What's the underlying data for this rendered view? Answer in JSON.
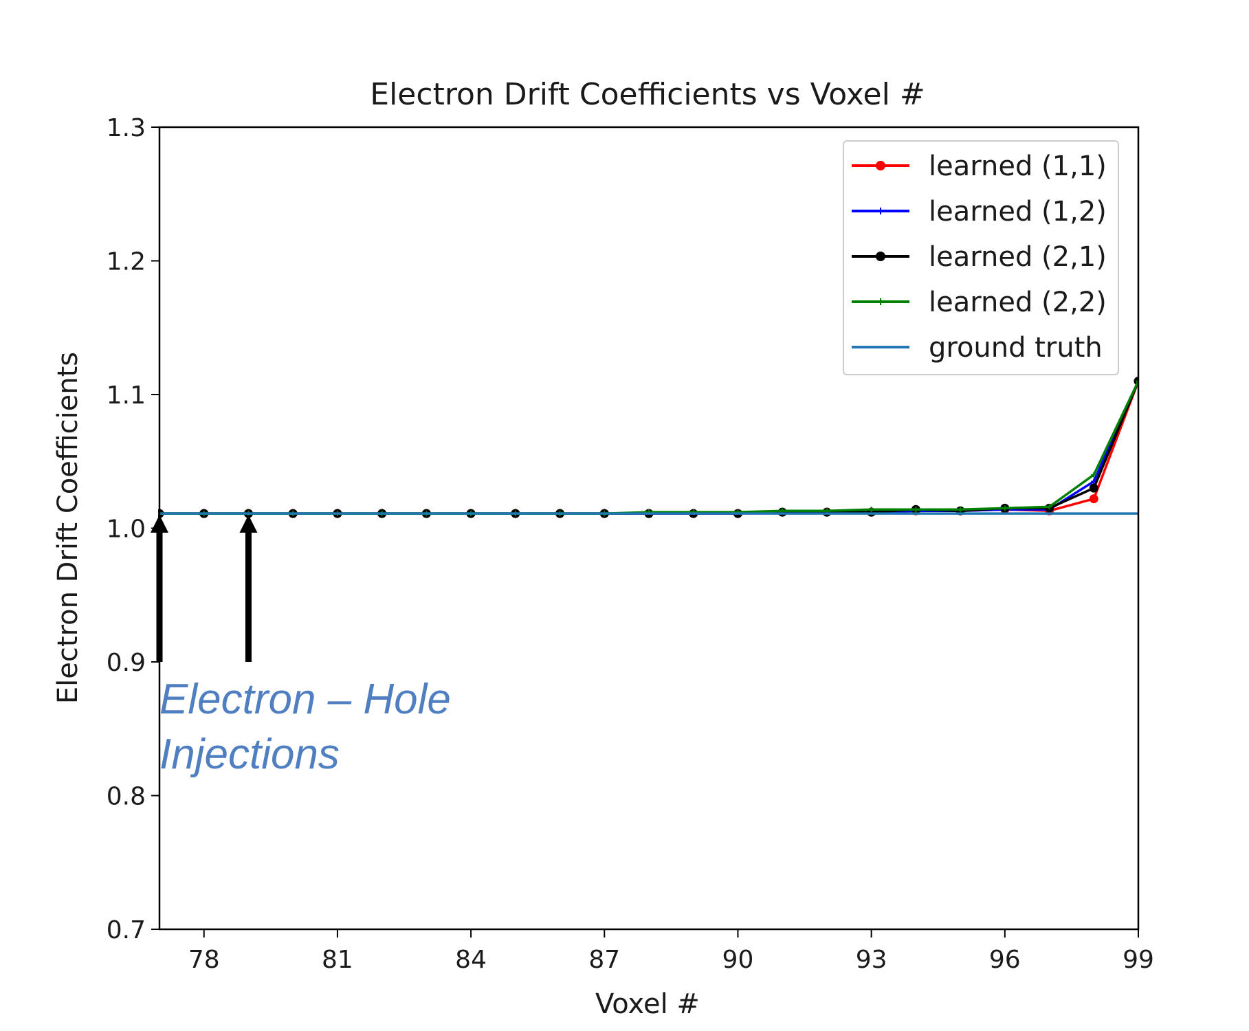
{
  "chart_data": {
    "type": "line",
    "title": "Electron Drift Coefficients vs Voxel #",
    "xlabel": "Voxel #",
    "ylabel": "Electron Drift Coefficients",
    "xlim": [
      77,
      99
    ],
    "ylim": [
      0.7,
      1.3
    ],
    "xticks": [
      78,
      81,
      84,
      87,
      90,
      93,
      96,
      99
    ],
    "yticks": [
      0.7,
      0.8,
      0.9,
      1.0,
      1.1,
      1.2,
      1.3
    ],
    "xtick_labels": [
      "78",
      "81",
      "84",
      "87",
      "90",
      "93",
      "96",
      "99"
    ],
    "ytick_labels": [
      "0.7",
      "0.8",
      "0.9",
      "1.0",
      "1.1",
      "1.2",
      "1.3"
    ],
    "x": [
      77,
      78,
      79,
      80,
      81,
      82,
      83,
      84,
      85,
      86,
      87,
      88,
      89,
      90,
      91,
      92,
      93,
      94,
      95,
      96,
      97,
      98,
      99
    ],
    "series": [
      {
        "name": "learned (1,1)",
        "color": "#ff0000",
        "marker": "dot",
        "values": [
          1.011,
          1.011,
          1.011,
          1.011,
          1.011,
          1.011,
          1.011,
          1.011,
          1.011,
          1.011,
          1.011,
          1.011,
          1.011,
          1.011,
          1.012,
          1.012,
          1.012,
          1.013,
          1.013,
          1.014,
          1.013,
          1.022,
          1.11
        ]
      },
      {
        "name": "learned (1,2)",
        "color": "#0000ff",
        "marker": "plus",
        "values": [
          1.011,
          1.011,
          1.011,
          1.011,
          1.011,
          1.011,
          1.011,
          1.011,
          1.011,
          1.011,
          1.011,
          1.011,
          1.011,
          1.011,
          1.012,
          1.012,
          1.012,
          1.013,
          1.013,
          1.014,
          1.014,
          1.035,
          1.11
        ]
      },
      {
        "name": "learned (2,1)",
        "color": "#000000",
        "marker": "dot",
        "values": [
          1.011,
          1.011,
          1.011,
          1.011,
          1.011,
          1.011,
          1.011,
          1.011,
          1.011,
          1.011,
          1.011,
          1.011,
          1.011,
          1.011,
          1.012,
          1.012,
          1.012,
          1.014,
          1.013,
          1.015,
          1.015,
          1.03,
          1.11
        ]
      },
      {
        "name": "learned (2,2)",
        "color": "#008000",
        "marker": "plus",
        "values": [
          1.011,
          1.011,
          1.011,
          1.011,
          1.011,
          1.011,
          1.011,
          1.011,
          1.011,
          1.011,
          1.011,
          1.012,
          1.012,
          1.012,
          1.013,
          1.013,
          1.014,
          1.014,
          1.014,
          1.015,
          1.016,
          1.04,
          1.11
        ]
      },
      {
        "name": "ground truth",
        "color": "#1f77b4",
        "marker": "none",
        "values": [
          1.011,
          1.011,
          1.011,
          1.011,
          1.011,
          1.011,
          1.011,
          1.011,
          1.011,
          1.011,
          1.011,
          1.011,
          1.011,
          1.011,
          1.011,
          1.011,
          1.011,
          1.011,
          1.011,
          1.011,
          1.011,
          1.011,
          1.011
        ]
      }
    ],
    "legend": {
      "placement": "top-right",
      "entries": [
        "learned (1,1)",
        "learned (1,2)",
        "learned (2,1)",
        "learned (2,2)",
        "ground truth"
      ]
    },
    "annotations": [
      {
        "type": "arrow",
        "x": 77,
        "y_from": 0.9,
        "y_to": 1.01,
        "color": "#000000"
      },
      {
        "type": "arrow",
        "x": 79,
        "y_from": 0.9,
        "y_to": 1.01,
        "color": "#000000"
      }
    ],
    "annotation_text": {
      "line1": "Electron – Hole",
      "line2": "Injections",
      "color": "#4f7fc0"
    }
  }
}
